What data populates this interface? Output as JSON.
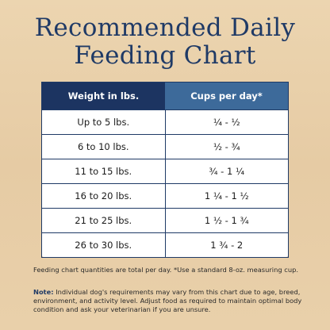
{
  "header": {
    "title_lines": [
      "Recommended Daily",
      "Feeding Chart"
    ]
  },
  "table": {
    "columns": [
      "Weight in lbs.",
      "Cups per day*"
    ],
    "rows": [
      [
        "Up to 5 lbs.",
        "¼ - ½"
      ],
      [
        "6 to 10 lbs.",
        "½ - ¾"
      ],
      [
        "11 to  15 lbs.",
        "¾ - 1 ¼"
      ],
      [
        "16 to 20 lbs.",
        "1 ¼ - 1 ½"
      ],
      [
        "21 to 25 lbs.",
        "1 ½ - 1 ¾"
      ],
      [
        "26 to 30 lbs.",
        "1 ¾ - 2"
      ]
    ]
  },
  "footnote": "Feeding chart quantities are total per day. *Use a standard 8-oz. measuring cup.",
  "note": {
    "label": "Note:",
    "text": "Individual dog's requirements may vary from this chart due to age, breed, environment, and activity level. Adjust food as required to maintain optimal body condition and ask your veterinarian if you are unsure."
  }
}
